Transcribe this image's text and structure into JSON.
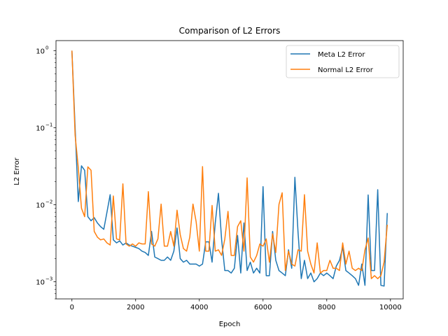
{
  "chart_data": {
    "type": "line",
    "title": "Comparison of L2 Errors",
    "xlabel": "Epoch",
    "ylabel": "L2 Error",
    "xlim": [
      -500,
      10400
    ],
    "ylim": [
      0.0006,
      1.35
    ],
    "yscale": "log",
    "xticks": [
      0,
      2000,
      4000,
      6000,
      8000,
      10000
    ],
    "xtick_labels": [
      "0",
      "2000",
      "4000",
      "6000",
      "8000",
      "10000"
    ],
    "yticks": [
      0.001,
      0.01,
      0.1,
      1
    ],
    "ytick_labels": [
      "10",
      "10",
      "10",
      "10"
    ],
    "ytick_exponents": [
      "−3",
      "−2",
      "−1",
      "0"
    ],
    "grid": false,
    "legend_position": "top-right",
    "x": [
      0,
      100,
      200,
      300,
      400,
      500,
      600,
      700,
      800,
      900,
      1000,
      1100,
      1200,
      1300,
      1400,
      1500,
      1600,
      1700,
      1800,
      1900,
      2000,
      2100,
      2200,
      2300,
      2400,
      2500,
      2600,
      2700,
      2800,
      2900,
      3000,
      3100,
      3200,
      3300,
      3400,
      3500,
      3600,
      3700,
      3800,
      3900,
      4000,
      4100,
      4200,
      4300,
      4400,
      4500,
      4600,
      4700,
      4800,
      4900,
      5000,
      5100,
      5200,
      5300,
      5400,
      5500,
      5600,
      5700,
      5800,
      5900,
      6000,
      6100,
      6200,
      6300,
      6400,
      6500,
      6600,
      6700,
      6800,
      6900,
      7000,
      7100,
      7200,
      7300,
      7400,
      7500,
      7600,
      7700,
      7800,
      7900,
      8000,
      8100,
      8200,
      8300,
      8400,
      8500,
      8600,
      8700,
      8800,
      8900,
      9000,
      9100,
      9200,
      9300,
      9400,
      9500,
      9600,
      9700,
      9800,
      9900
    ],
    "series": [
      {
        "name": "Meta L2 Error",
        "color": "#1f77b4",
        "values": [
          1.0,
          0.1,
          0.011,
          0.032,
          0.028,
          0.007,
          0.0062,
          0.0068,
          0.0058,
          0.0052,
          0.0048,
          0.008,
          0.0135,
          0.0035,
          0.0032,
          0.0034,
          0.003,
          0.0032,
          0.003,
          0.0029,
          0.0028,
          0.0027,
          0.0025,
          0.0024,
          0.0022,
          0.0045,
          0.0021,
          0.002,
          0.0019,
          0.0019,
          0.0021,
          0.0019,
          0.0025,
          0.005,
          0.002,
          0.0018,
          0.0019,
          0.0017,
          0.0017,
          0.0017,
          0.0016,
          0.0017,
          0.0033,
          0.0033,
          0.0018,
          0.0058,
          0.0141,
          0.0035,
          0.0014,
          0.0014,
          0.0013,
          0.0015,
          0.004,
          0.0013,
          0.0058,
          0.0014,
          0.0018,
          0.0013,
          0.0015,
          0.0013,
          0.0172,
          0.0012,
          0.0012,
          0.0045,
          0.0019,
          0.0014,
          0.0013,
          0.0012,
          0.0026,
          0.0015,
          0.0227,
          0.0043,
          0.0011,
          0.0019,
          0.0011,
          0.0013,
          0.001,
          0.0011,
          0.0013,
          0.0012,
          0.0013,
          0.0012,
          0.0011,
          0.0016,
          0.0019,
          0.0028,
          0.0014,
          0.0013,
          0.0012,
          0.0011,
          0.0009,
          0.0017,
          0.0009,
          0.0134,
          0.0014,
          0.0014,
          0.0157,
          0.0009,
          0.00088,
          0.0078
        ]
      },
      {
        "name": "Normal L2 Error",
        "color": "#ff7f0e",
        "values": [
          1.0,
          0.08,
          0.03,
          0.009,
          0.007,
          0.031,
          0.028,
          0.0045,
          0.0038,
          0.0035,
          0.0036,
          0.0032,
          0.003,
          0.013,
          0.0036,
          0.0035,
          0.0187,
          0.0031,
          0.0029,
          0.0031,
          0.0029,
          0.0032,
          0.0031,
          0.0031,
          0.0148,
          0.0031,
          0.0029,
          0.0036,
          0.0102,
          0.0029,
          0.0029,
          0.0045,
          0.0029,
          0.0085,
          0.0041,
          0.0027,
          0.0025,
          0.0038,
          0.0102,
          0.006,
          0.0025,
          0.0313,
          0.0025,
          0.0025,
          0.0098,
          0.0025,
          0.0026,
          0.0022,
          0.0036,
          0.0082,
          0.0022,
          0.0022,
          0.0052,
          0.0062,
          0.0025,
          0.0223,
          0.0021,
          0.0018,
          0.0022,
          0.0031,
          0.0029,
          0.0036,
          0.0018,
          0.0042,
          0.0024,
          0.0101,
          0.0143,
          0.0014,
          0.0025,
          0.0017,
          0.0016,
          0.0026,
          0.0025,
          0.0135,
          0.0025,
          0.0017,
          0.0013,
          0.0032,
          0.0013,
          0.0014,
          0.0014,
          0.0019,
          0.0015,
          0.0015,
          0.0014,
          0.0032,
          0.0017,
          0.0025,
          0.0015,
          0.0014,
          0.0015,
          0.0014,
          0.0026,
          0.0037,
          0.0011,
          0.0012,
          0.0011,
          0.0012,
          0.0018,
          0.0055
        ]
      }
    ]
  }
}
